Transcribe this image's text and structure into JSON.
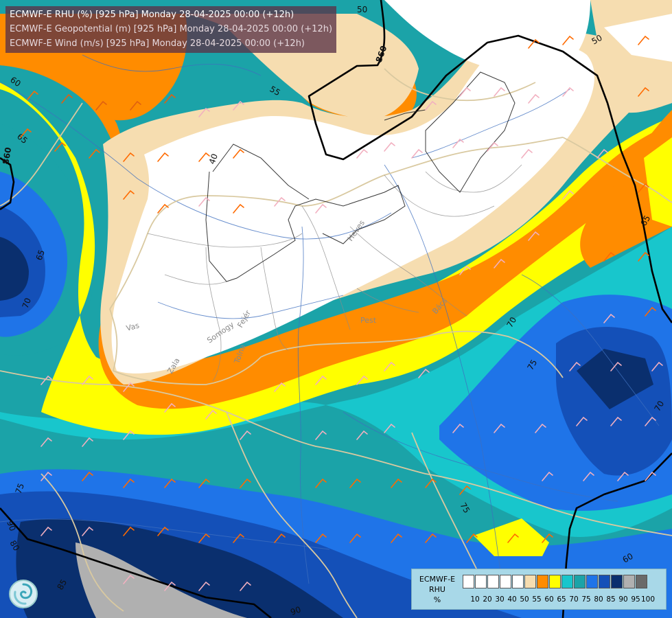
{
  "titles": {
    "line1": "ECMWF-E RHU (%) [925 hPa] Monday 28-04-2025 00:00 (+12h)",
    "line2": "ECMWF-E Geopotential (m) [925 hPa] Monday 28-04-2025 00:00 (+12h)",
    "line3": "ECMWF-E Wind (m/s) [925 hPa] Monday 28-04-2025 00:00 (+12h)"
  },
  "legend": {
    "model": "ECMWF-E",
    "variable": "RHU",
    "unit": "%",
    "levels": [
      "10",
      "20",
      "30",
      "40",
      "50",
      "55",
      "60",
      "65",
      "70",
      "75",
      "80",
      "85",
      "90",
      "95",
      "100"
    ],
    "colors": [
      "#ffffff",
      "#ffffff",
      "#ffffff",
      "#ffffff",
      "#ffffff",
      "#f6ddb0",
      "#ff8c00",
      "#ffff00",
      "#18c6cc",
      "#1ba3a8",
      "#1f74e8",
      "#1450b8",
      "#0a2f6e",
      "#b0b0b0",
      "#6a6a6a"
    ]
  },
  "contour_labels": {
    "rhu": [
      "50",
      "55",
      "60",
      "65",
      "40",
      "65",
      "70",
      "75",
      "70",
      "75",
      "75",
      "60",
      "90",
      "80",
      "85",
      "90",
      "50",
      "65",
      "70"
    ],
    "geopotential": [
      "860",
      "860"
    ]
  },
  "county_labels": [
    "Vas",
    "Zala",
    "Somogy",
    "Tolna",
    "Fejér",
    "Pest",
    "Bács",
    "Heves"
  ],
  "colors": {
    "white": "#ffffff",
    "tan": "#f6ddb0",
    "orange": "#ff8c00",
    "yellow": "#ffff00",
    "cyan": "#18c6cc",
    "teal": "#1ba3a8",
    "blue": "#1f74e8",
    "darkblue": "#1450b8",
    "navy": "#0a2f6e",
    "gray": "#b0b0b0"
  },
  "icons": {
    "logo": "ecmwf-swirl-logo",
    "wind": "wind-barb-icon"
  }
}
